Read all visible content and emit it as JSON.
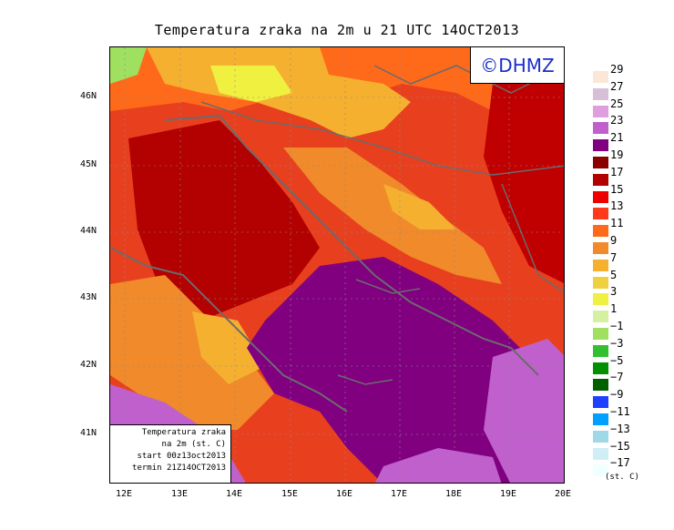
{
  "title": "Temperatura zraka na 2m u 21 UTC 14OCT2013",
  "logo": "©DHMZ",
  "info_box": {
    "line1": "Temperatura zraka",
    "line2": "na 2m (st. C)",
    "line3": "start 00z13oct2013",
    "line4": "termin 21Z14OCT2013"
  },
  "lat_labels": [
    "46N",
    "45N",
    "44N",
    "43N",
    "42N",
    "41N"
  ],
  "lon_labels": [
    "12E",
    "13E",
    "14E",
    "15E",
    "16E",
    "17E",
    "18E",
    "19E",
    "20E"
  ],
  "legend_levels": [
    "29",
    "27",
    "25",
    "23",
    "21",
    "19",
    "17",
    "15",
    "13",
    "11",
    "9",
    "7",
    "5",
    "3",
    "1",
    "−1",
    "−3",
    "−5",
    "−7",
    "−9",
    "−11",
    "−13",
    "−15",
    "−17"
  ],
  "legend_colors": [
    "#fae7d7",
    "#d8bfd8",
    "#dea0dd",
    "#c060cc",
    "#800080",
    "#8b0000",
    "#b30000",
    "#ee0000",
    "#ff3a1a",
    "#ff6a1a",
    "#f08a2a",
    "#f5b030",
    "#f0d040",
    "#f0f040",
    "#d4f0a0",
    "#a0e060",
    "#30c030",
    "#009000",
    "#006000",
    "#2040ff",
    "#00a0ff",
    "#a0d8e8",
    "#d0eef6",
    "#f0ffff"
  ],
  "legend_unit": "(st. C)"
}
